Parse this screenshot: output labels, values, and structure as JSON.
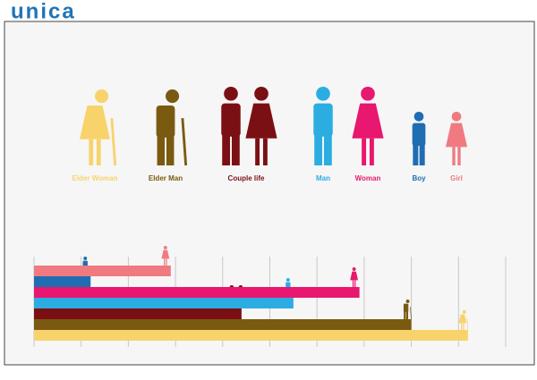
{
  "logo": "unica",
  "chart_data": {
    "type": "bar",
    "orientation": "horizontal",
    "categories": [
      "Elder Woman",
      "Elder Man",
      "Couple life",
      "Man",
      "Woman",
      "Boy",
      "Girl"
    ],
    "values": [
      9.2,
      8.0,
      4.4,
      5.5,
      6.9,
      1.2,
      2.9
    ],
    "colors": [
      "#f8d36c",
      "#7a5a10",
      "#7b1014",
      "#2cadE2",
      "#e8176f",
      "#1f6db3",
      "#f07a80"
    ],
    "xlim": [
      0,
      10
    ],
    "xticks": [
      0,
      1,
      2,
      3,
      4,
      5,
      6,
      7,
      8,
      9,
      10
    ],
    "grid": true
  }
}
